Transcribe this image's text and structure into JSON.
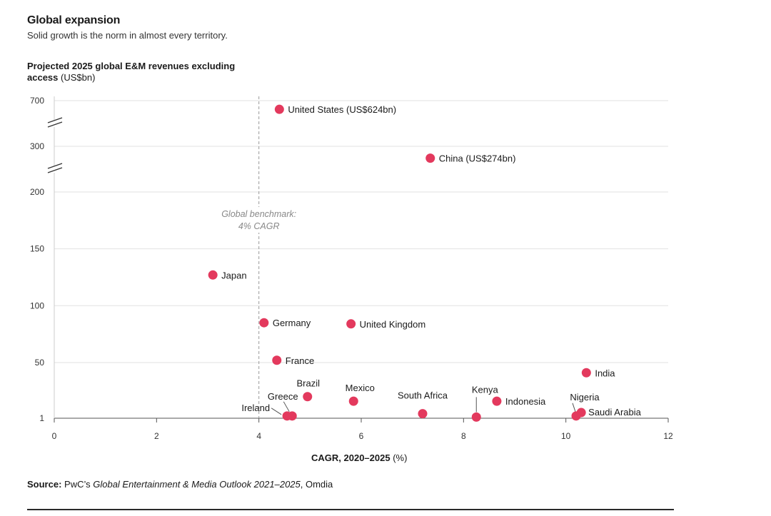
{
  "chart_data": {
    "type": "scatter",
    "title": "Global expansion",
    "subtitle": "Solid growth is the norm in almost every territory.",
    "ylabel_bold": "Projected 2025 global E&M revenues excluding access",
    "ylabel_unit": "(US$bn)",
    "xlabel_bold": "CAGR, 2020–2025",
    "xlabel_unit": "(%)",
    "xlim": [
      0,
      12
    ],
    "x_ticks": [
      0,
      2,
      4,
      6,
      8,
      10,
      12
    ],
    "y_ticks": [
      1,
      50,
      100,
      150,
      200,
      300,
      700
    ],
    "y_scale": "broken",
    "grid": "horizontal",
    "benchmark": {
      "x": 4,
      "label_line1": "Global benchmark:",
      "label_line2": "4% CAGR"
    },
    "point_color": "#e3395d",
    "points": [
      {
        "label": "United States (US$624bn)",
        "x": 4.4,
        "y": 624
      },
      {
        "label": "China (US$274bn)",
        "x": 7.35,
        "y": 274
      },
      {
        "label": "Japan",
        "x": 3.1,
        "y": 127
      },
      {
        "label": "Germany",
        "x": 4.1,
        "y": 85
      },
      {
        "label": "United Kingdom",
        "x": 5.8,
        "y": 84
      },
      {
        "label": "France",
        "x": 4.35,
        "y": 52
      },
      {
        "label": "India",
        "x": 10.4,
        "y": 41
      },
      {
        "label": "Brazil",
        "x": 4.95,
        "y": 20
      },
      {
        "label": "Mexico",
        "x": 5.85,
        "y": 16
      },
      {
        "label": "Indonesia",
        "x": 8.65,
        "y": 16
      },
      {
        "label": "Saudi Arabia",
        "x": 10.3,
        "y": 6
      },
      {
        "label": "Nigeria",
        "x": 10.2,
        "y": 3
      },
      {
        "label": "South Africa",
        "x": 7.2,
        "y": 5
      },
      {
        "label": "Kenya",
        "x": 8.25,
        "y": 2
      },
      {
        "label": "Greece",
        "x": 4.65,
        "y": 3
      },
      {
        "label": "Ireland",
        "x": 4.55,
        "y": 3
      }
    ]
  },
  "source": {
    "prefix": "Source:",
    "text1": " PwC’s ",
    "italic": "Global Entertainment & Media Outlook 2021–2025",
    "text2": ", Omdia"
  }
}
